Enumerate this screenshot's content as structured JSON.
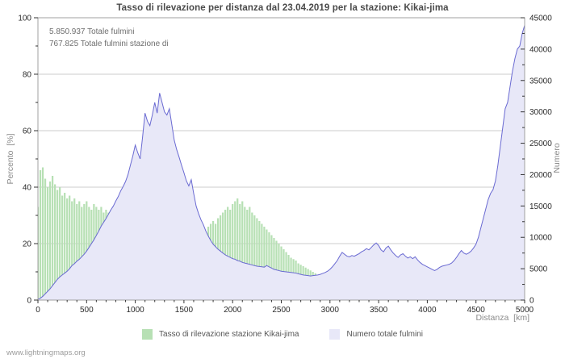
{
  "annotation": {
    "line1": "5.850.937 Totale fulmini",
    "line2": "767.825 Totale fulmini stazione di"
  },
  "footer": "www.lightningmaps.org",
  "colors": {
    "grid": "#cccccc",
    "border": "#a0a0a0",
    "tick": "#333333",
    "tick_label": "#2a2a2a",
    "title": "#4a4a4a",
    "bar_fill": "#b7e0b4",
    "area_fill": "#e8e8f8",
    "line": "#6a6ad2"
  },
  "chart_data": {
    "type": "combo-bar-line",
    "title": "Tasso di rilevazione per distanza dal 23.04.2019 per la stazione: Kikai-jima",
    "grid": "horizontal-major",
    "legend_position": "bottom-center",
    "x": {
      "label": "Distanza  [km]",
      "min": 0,
      "max": 5000,
      "step": 25,
      "major_tick": 500,
      "minor_tick": 100
    },
    "y_left": {
      "label": "Percento  [%]",
      "min": 0,
      "max": 100,
      "major_tick": 20,
      "minor_tick": 10
    },
    "y_right": {
      "label": "Numero",
      "min": 0,
      "max": 45000,
      "major_tick": 5000,
      "minor_tick": 2500
    },
    "series": [
      {
        "name": "Tasso di rilevazione stazione Kikai-jima",
        "type": "bar",
        "axis": "left",
        "unit": "percent",
        "color": "#b7e0b4",
        "values": [
          33,
          46,
          47,
          43,
          40,
          42,
          44,
          41,
          39,
          40,
          37,
          38,
          36,
          37,
          35,
          36,
          34,
          35,
          33,
          34,
          35,
          33,
          32,
          34,
          33,
          32,
          33,
          31,
          32,
          31,
          32,
          30,
          31,
          29,
          30,
          28,
          27,
          28,
          26,
          25,
          24,
          22,
          21,
          20,
          18,
          17,
          16,
          15,
          16,
          15,
          14,
          15,
          14,
          15,
          16,
          15,
          16,
          17,
          18,
          17,
          19,
          20,
          21,
          20,
          22,
          21,
          23,
          24,
          25,
          24,
          26,
          27,
          28,
          27,
          29,
          30,
          31,
          32,
          33,
          32,
          34,
          35,
          36,
          34,
          35,
          33,
          32,
          33,
          31,
          30,
          29,
          28,
          27,
          26,
          25,
          24,
          23,
          22,
          21,
          20,
          19,
          18,
          17,
          16,
          15,
          14.5,
          14,
          13,
          12.5,
          12,
          11.5,
          11,
          10.5,
          10,
          9.5,
          9,
          8,
          7.5,
          7,
          6,
          5.5,
          5,
          5,
          4.5,
          4.5,
          4,
          4,
          4,
          4,
          3.5,
          3.5,
          3.5,
          3,
          3,
          3,
          3.5,
          3.5,
          4,
          4,
          3.5,
          3.5,
          3,
          3,
          3,
          2.5,
          2.5,
          2.5,
          2,
          2,
          2,
          2,
          2,
          1.8,
          1.8,
          1.5,
          1.5,
          1.5,
          1.5,
          1.3,
          1.3,
          1.2,
          1.2,
          1,
          1,
          1,
          1,
          0.8,
          0.8,
          0.8,
          0.8,
          0.7,
          0.7,
          0.7,
          0.7,
          0.6,
          0.6,
          0.6,
          0.5,
          0.5,
          0.5,
          0.5,
          0.7,
          1,
          1.2,
          1,
          0.8,
          0.6,
          0.5,
          0.4,
          0.4,
          0.3,
          0.3,
          0.3,
          0.3,
          0.3,
          0.3,
          0.3,
          0.3,
          0.3,
          0.3,
          0.3
        ]
      },
      {
        "name": "Numero totale fulmini",
        "type": "area-line",
        "axis": "right",
        "unit": "count",
        "fill": "#e8e8f8",
        "line_color": "#6a6ad2",
        "values": [
          100,
          300,
          600,
          1000,
          1400,
          1800,
          2300,
          2800,
          3300,
          3700,
          4000,
          4300,
          4600,
          5000,
          5500,
          5800,
          6200,
          6500,
          6900,
          7300,
          7800,
          8400,
          9000,
          9600,
          10300,
          11000,
          11800,
          12400,
          13000,
          13700,
          14400,
          15000,
          15800,
          16500,
          17400,
          18100,
          18900,
          20000,
          21500,
          23000,
          24700,
          23500,
          22500,
          26000,
          29800,
          28500,
          27800,
          29500,
          31500,
          29800,
          33000,
          31500,
          30000,
          29500,
          30500,
          28000,
          25500,
          24000,
          22800,
          21500,
          20300,
          19000,
          18200,
          19200,
          17000,
          15000,
          13800,
          12800,
          12000,
          11000,
          10200,
          9500,
          8900,
          8500,
          8100,
          7800,
          7500,
          7200,
          7000,
          6800,
          6600,
          6500,
          6300,
          6200,
          6000,
          5900,
          5800,
          5700,
          5600,
          5500,
          5400,
          5350,
          5300,
          5250,
          5500,
          5300,
          5100,
          4900,
          4800,
          4700,
          4600,
          4550,
          4500,
          4450,
          4400,
          4350,
          4300,
          4200,
          4100,
          4000,
          3950,
          3900,
          3850,
          3900,
          3950,
          4000,
          4100,
          4250,
          4400,
          4600,
          4900,
          5300,
          5800,
          6300,
          7000,
          7600,
          7300,
          7000,
          6900,
          7100,
          7000,
          7200,
          7400,
          7700,
          7900,
          8200,
          8000,
          8400,
          8800,
          9100,
          8700,
          8000,
          7700,
          8300,
          8600,
          8000,
          7500,
          7100,
          6800,
          7200,
          7400,
          7000,
          6700,
          6900,
          6600,
          6900,
          6400,
          6000,
          5700,
          5500,
          5300,
          5100,
          4900,
          4700,
          4900,
          5200,
          5400,
          5500,
          5600,
          5700,
          5900,
          6300,
          6800,
          7400,
          7900,
          7500,
          7300,
          7500,
          7800,
          8300,
          8900,
          10000,
          11500,
          13000,
          14500,
          16000,
          17000,
          17600,
          19000,
          21500,
          24500,
          27500,
          30500,
          31500,
          34000,
          36500,
          38500,
          40000,
          40500,
          42500,
          43800
        ]
      }
    ]
  }
}
